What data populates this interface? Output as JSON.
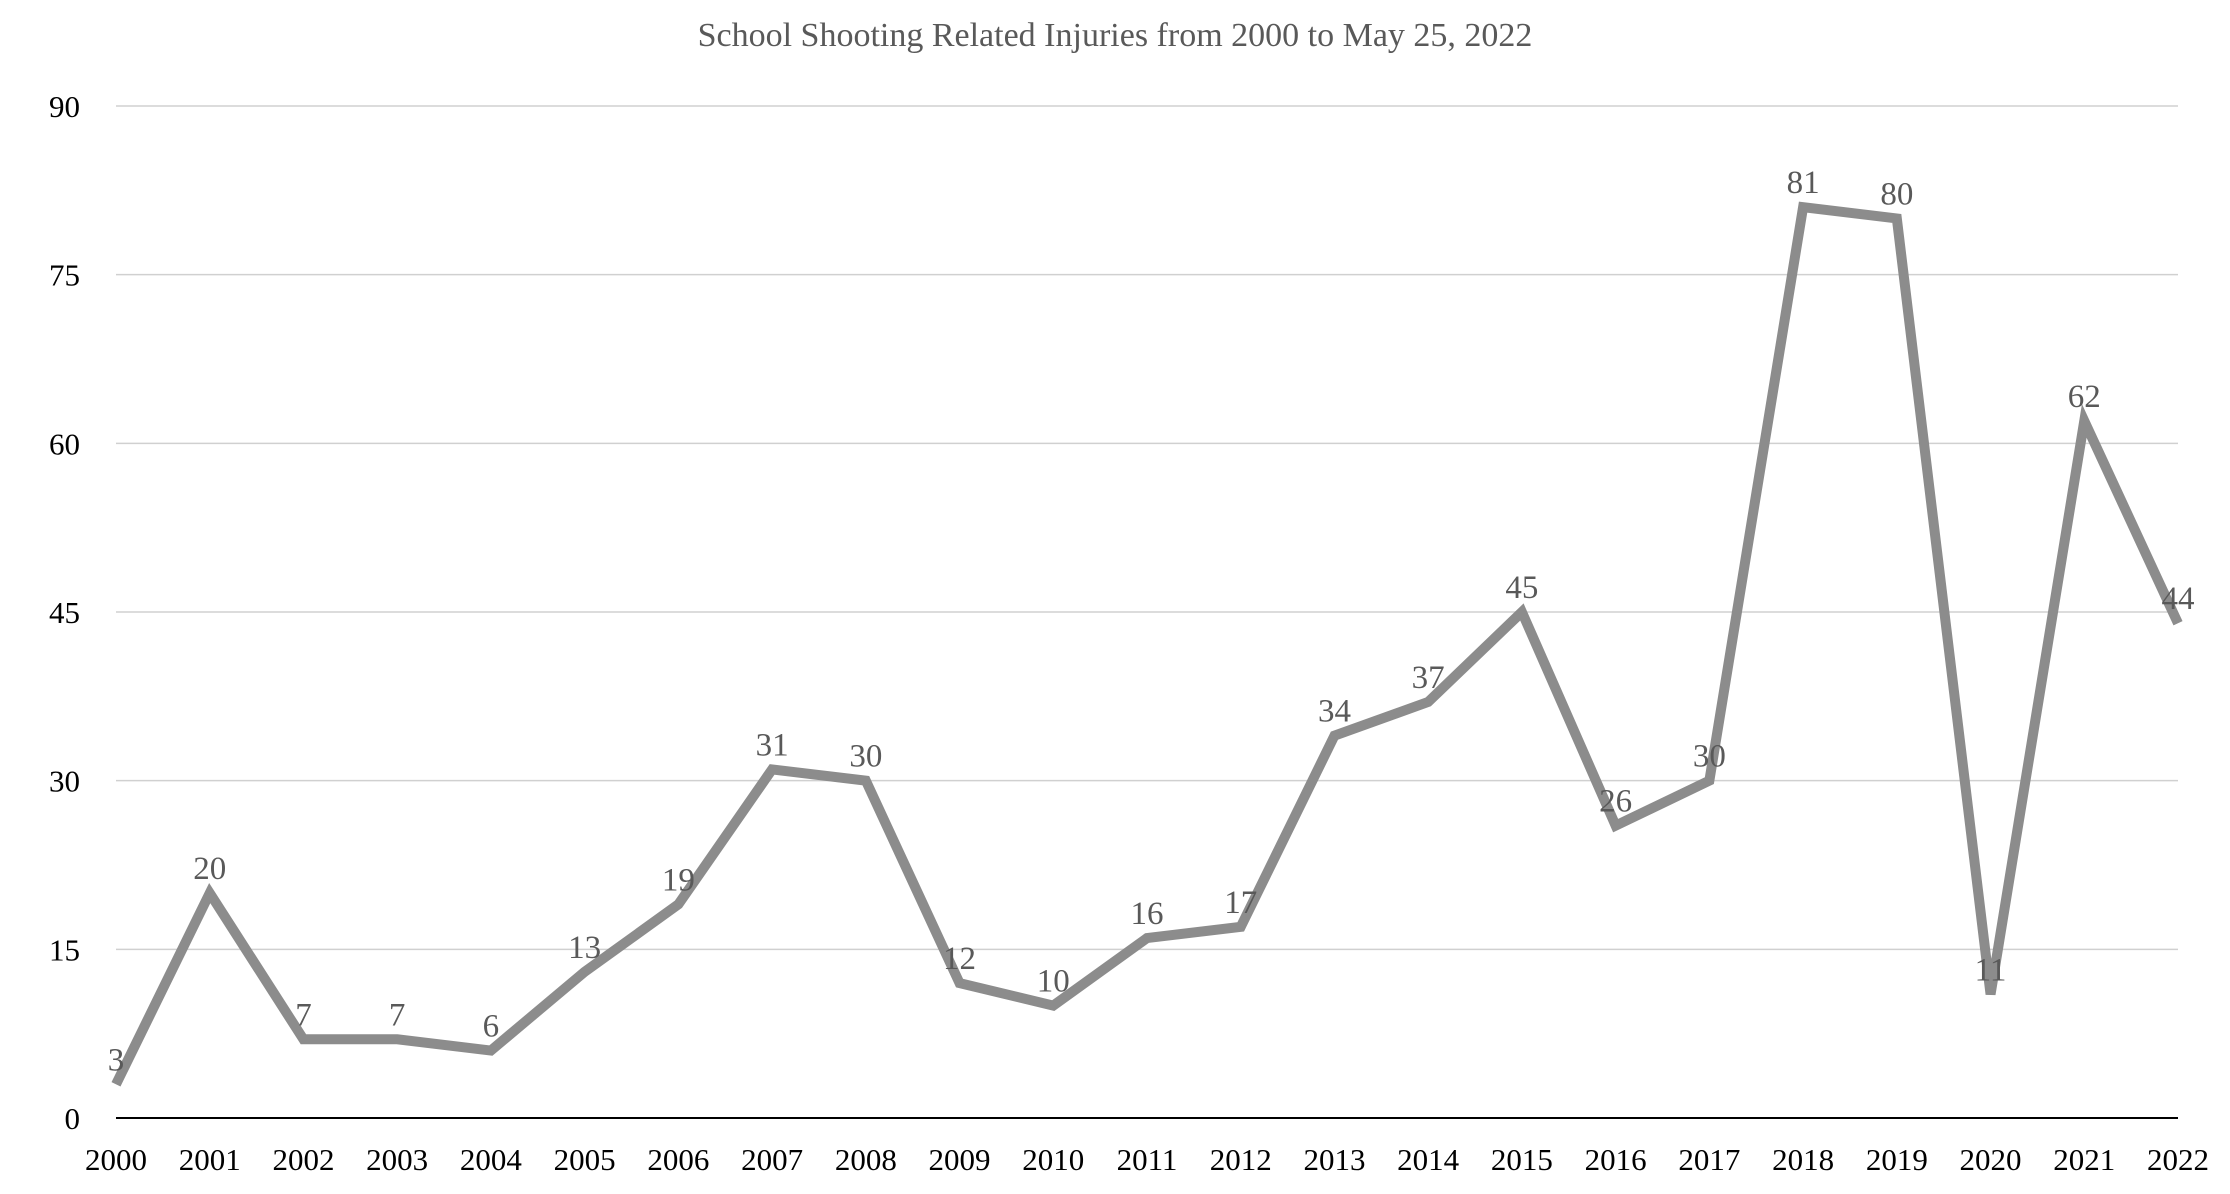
{
  "chart_data": {
    "type": "line",
    "title": "School Shooting Related Injuries from 2000 to May 25, 2022",
    "xlabel": "",
    "ylabel": "",
    "categories": [
      "2000",
      "2001",
      "2002",
      "2003",
      "2004",
      "2005",
      "2006",
      "2007",
      "2008",
      "2009",
      "2010",
      "2011",
      "2012",
      "2013",
      "2014",
      "2015",
      "2016",
      "2017",
      "2018",
      "2019",
      "2020",
      "2021",
      "2022"
    ],
    "series": [
      {
        "name": "Injuries",
        "values": [
          3,
          20,
          7,
          7,
          6,
          13,
          19,
          31,
          30,
          12,
          10,
          16,
          17,
          34,
          37,
          45,
          26,
          30,
          81,
          80,
          11,
          62,
          44
        ],
        "color": "#8c8c8c"
      }
    ],
    "ylim": [
      0,
      90
    ],
    "yticks": [
      0,
      15,
      30,
      45,
      60,
      75,
      90
    ],
    "grid": true,
    "legend": "none",
    "data_labels": true
  }
}
